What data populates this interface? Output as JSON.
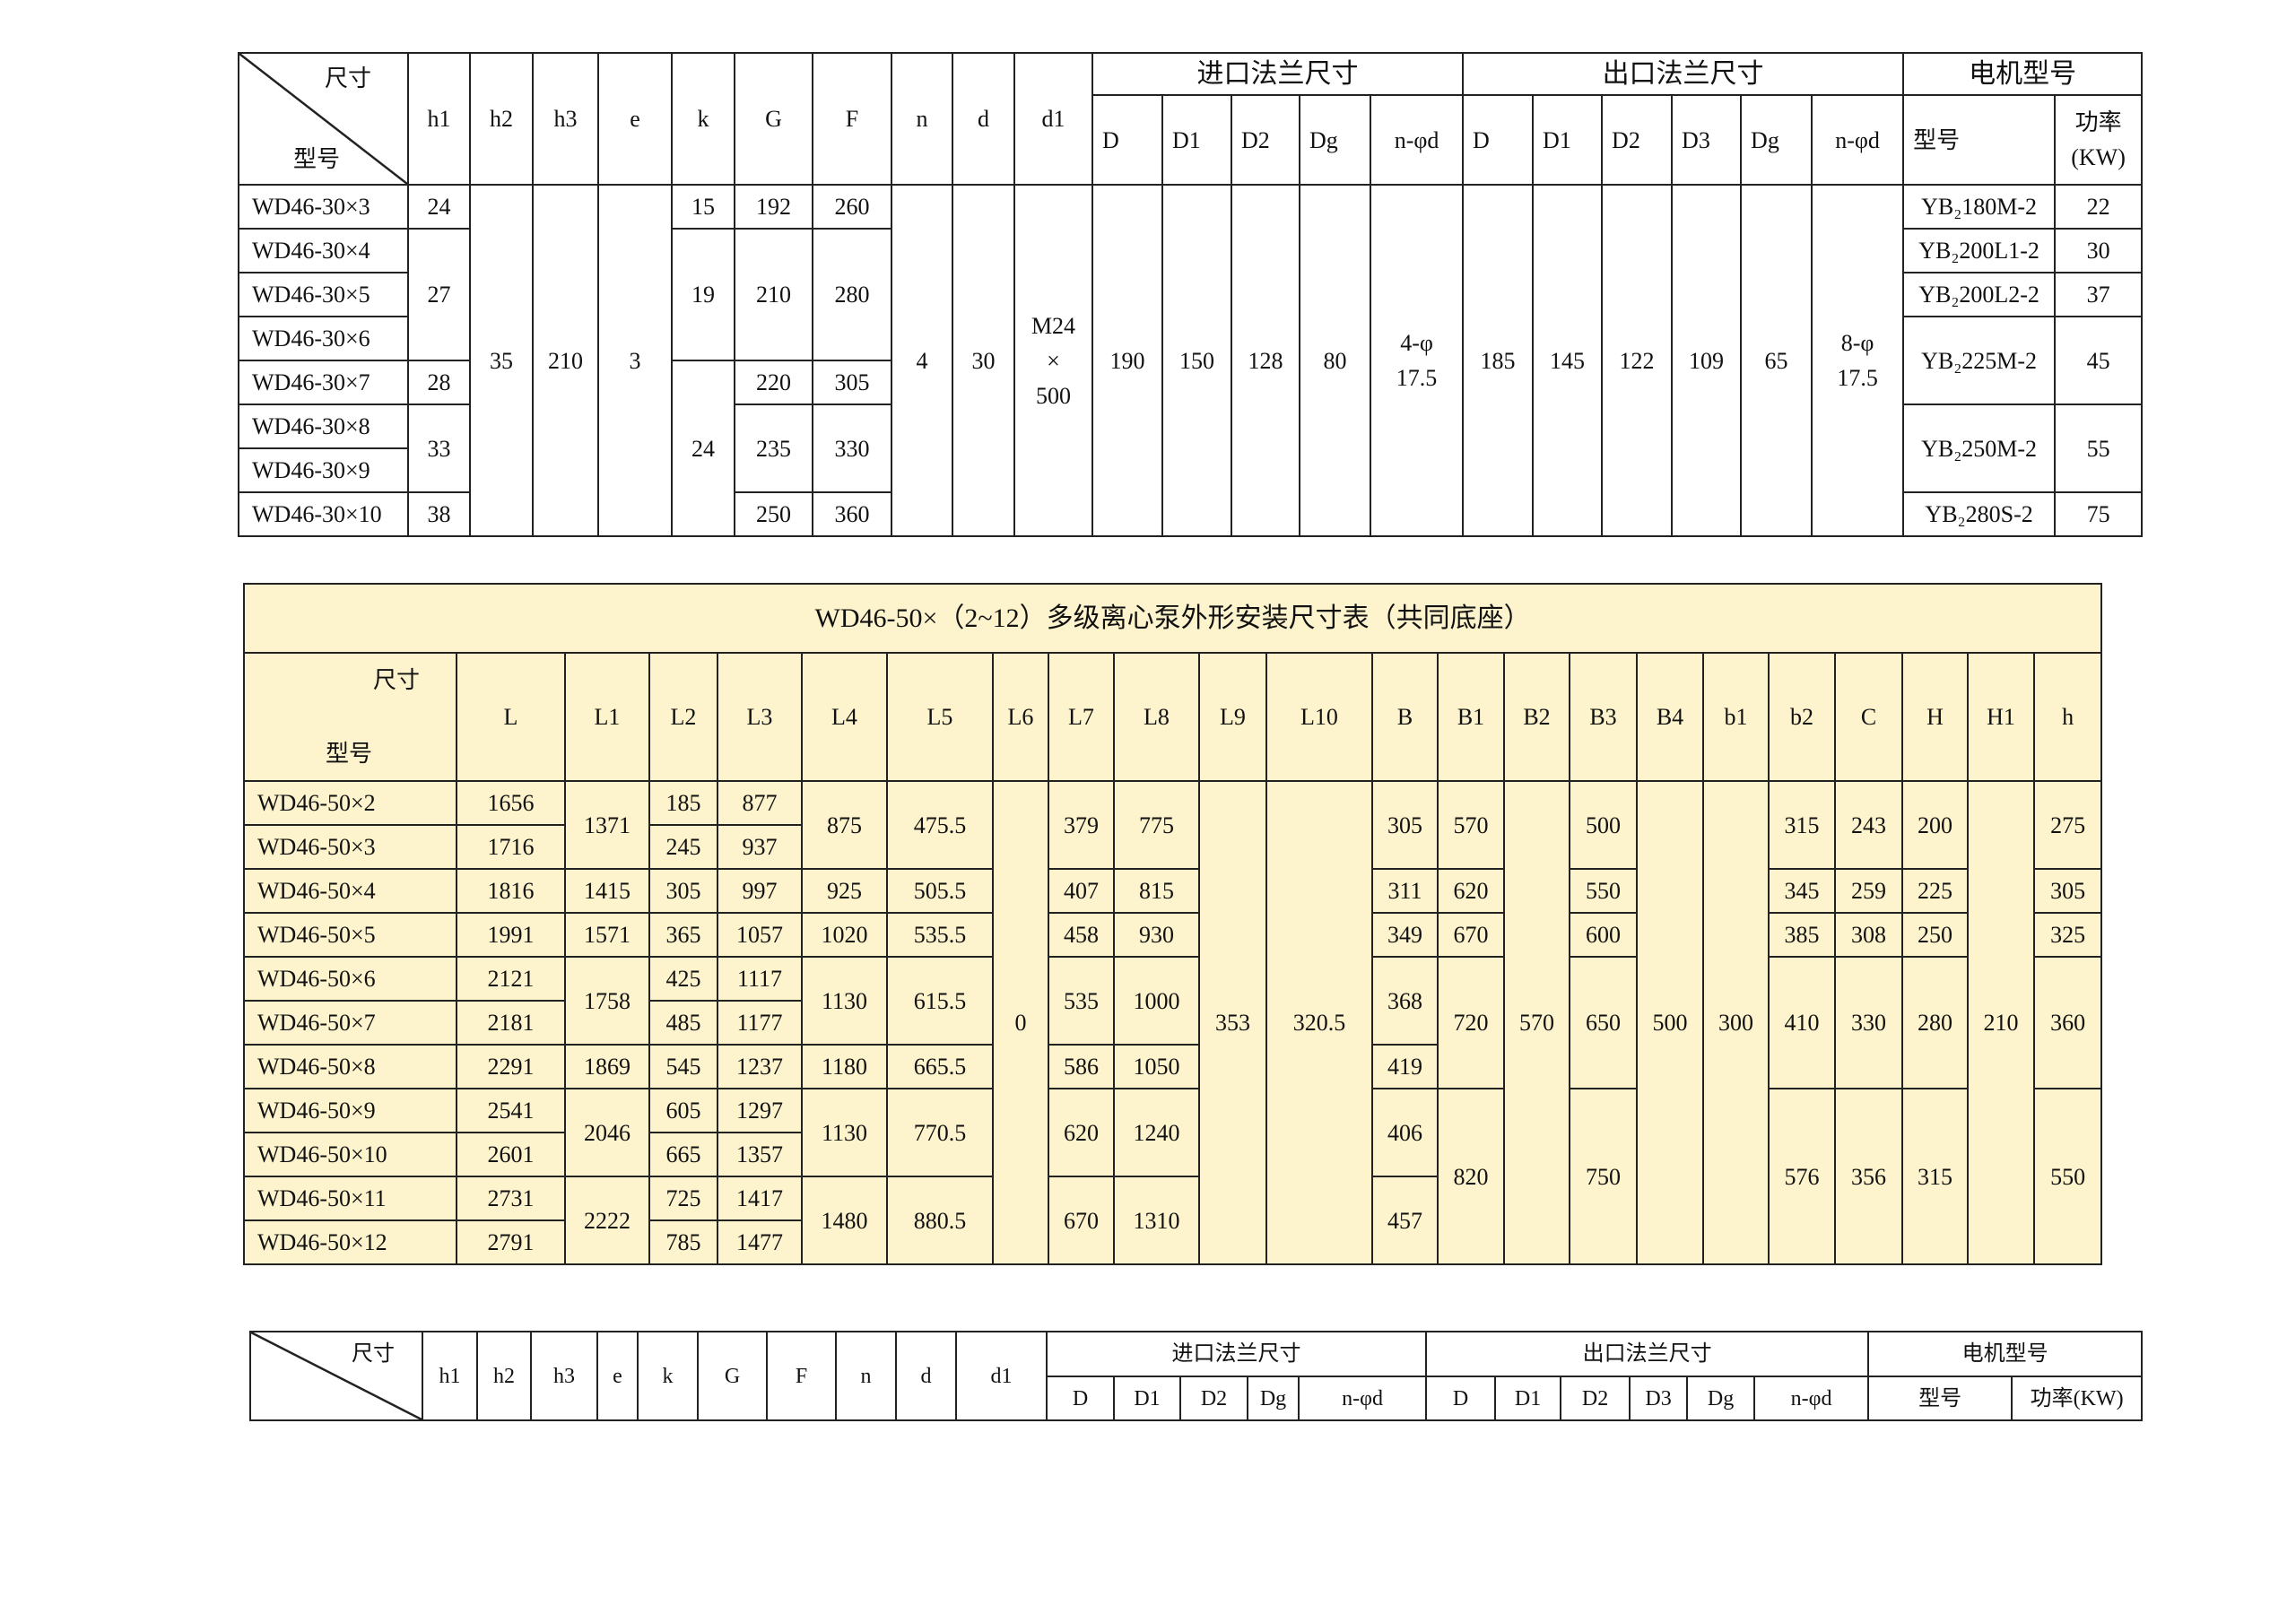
{
  "table1": {
    "corner_top": "尺寸",
    "corner_bottom": "型号",
    "headers": [
      "h1",
      "h2",
      "h3",
      "e",
      "k",
      "G",
      "F",
      "n",
      "d",
      "d1"
    ],
    "inlet_group": "进口法兰尺寸",
    "inlet_headers": [
      "D",
      "D1",
      "D2",
      "Dg",
      "n-φd"
    ],
    "outlet_group": "出口法兰尺寸",
    "outlet_headers": [
      "D",
      "D1",
      "D2",
      "D3",
      "Dg",
      "n-φd"
    ],
    "motor_group": "电机型号",
    "motor_headers": [
      "型号",
      "功率\n(KW)"
    ],
    "rows": [
      [
        "WD46-30×3",
        "24",
        "35",
        "210",
        "3",
        "15",
        "192",
        "260",
        "4",
        "30",
        "M24\n×\n500",
        "190",
        "150",
        "128",
        "80",
        "4-φ\n17.5",
        "185",
        "145",
        "122",
        "109",
        "65",
        "8-φ\n17.5",
        "YB₂180M-2",
        "22"
      ],
      [
        "WD46-30×4",
        "27",
        "19",
        "210",
        "280",
        "YB₂200L1-2",
        "30"
      ],
      [
        "WD46-30×5",
        "YB₂200L2-2",
        "37"
      ],
      [
        "WD46-30×6",
        "YB₂225M-2",
        "45"
      ],
      [
        "WD46-30×7",
        "28",
        "24",
        "220",
        "305"
      ],
      [
        "WD46-30×8",
        "33",
        "235",
        "330",
        "YB₂250M-2",
        "55"
      ],
      [
        "WD46-30×9"
      ],
      [
        "WD46-30×10",
        "38",
        "250",
        "360",
        "YB₂280S-2",
        "75"
      ]
    ]
  },
  "table2": {
    "title": "WD46-50×（2~12）多级离心泵外形安装尺寸表（共同底座）",
    "corner_top": "尺寸",
    "corner_bottom": "型号",
    "headers": [
      "L",
      "L1",
      "L2",
      "L3",
      "L4",
      "L5",
      "L6",
      "L7",
      "L8",
      "L9",
      "L10",
      "B",
      "B1",
      "B2",
      "B3",
      "B4",
      "b1",
      "b2",
      "C",
      "H",
      "H1",
      "h"
    ],
    "fill_color": "#fdf3cc",
    "rows": [
      [
        "WD46-50×2",
        "1656",
        "1371",
        "185",
        "877",
        "875",
        "475.5",
        "0",
        "379",
        "775",
        "353",
        "320.5",
        "305",
        "570",
        "570",
        "500",
        "500",
        "300",
        "315",
        "243",
        "200",
        "210",
        "275"
      ],
      [
        "WD46-50×3",
        "1716",
        "245",
        "937"
      ],
      [
        "WD46-50×4",
        "1816",
        "1415",
        "305",
        "997",
        "925",
        "505.5",
        "407",
        "815",
        "311",
        "620",
        "550",
        "345",
        "259",
        "225",
        "305"
      ],
      [
        "WD46-50×5",
        "1991",
        "1571",
        "365",
        "1057",
        "1020",
        "535.5",
        "458",
        "930",
        "349",
        "670",
        "600",
        "385",
        "308",
        "250",
        "325"
      ],
      [
        "WD46-50×6",
        "2121",
        "1758",
        "425",
        "1117",
        "1130",
        "615.5",
        "535",
        "1000",
        "368",
        "720",
        "650",
        "410",
        "330",
        "280",
        "360"
      ],
      [
        "WD46-50×7",
        "2181",
        "485",
        "1177"
      ],
      [
        "WD46-50×8",
        "2291",
        "1869",
        "545",
        "1237",
        "1180",
        "665.5",
        "586",
        "1050",
        "419"
      ],
      [
        "WD46-50×9",
        "2541",
        "2046",
        "605",
        "1297",
        "1130",
        "770.5",
        "620",
        "1240",
        "406",
        "820",
        "750",
        "576",
        "356",
        "315",
        "550"
      ],
      [
        "WD46-50×10",
        "2601",
        "665",
        "1357"
      ],
      [
        "WD46-50×11",
        "2731",
        "2222",
        "725",
        "1417",
        "1480",
        "880.5",
        "670",
        "1310",
        "457"
      ],
      [
        "WD46-50×12",
        "2791",
        "785",
        "1477"
      ]
    ]
  },
  "table3": {
    "corner_top": "尺寸",
    "headers": [
      "h1",
      "h2",
      "h3",
      "e",
      "k",
      "G",
      "F",
      "n",
      "d",
      "d1"
    ],
    "inlet_group": "进口法兰尺寸",
    "inlet_headers": [
      "D",
      "D1",
      "D2",
      "Dg",
      "n-φd"
    ],
    "outlet_group": "出口法兰尺寸",
    "outlet_headers": [
      "D",
      "D1",
      "D2",
      "D3",
      "Dg",
      "n-φd"
    ],
    "motor_group": "电机型号",
    "motor_headers": [
      "型号",
      "功率(KW)"
    ]
  }
}
